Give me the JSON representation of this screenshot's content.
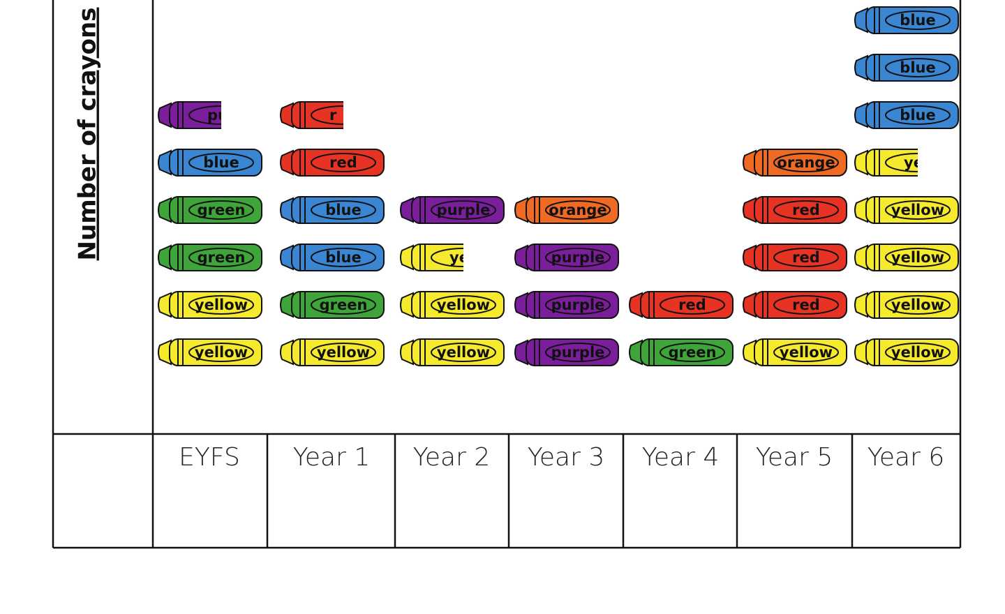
{
  "chart_data": {
    "type": "pictogram",
    "y_label": "Number of crayons",
    "categories": [
      "EYFS",
      "Year 1",
      "Year 2",
      "Year 3",
      "Year 4",
      "Year 5",
      "Year 6"
    ],
    "columns": [
      [
        {
          "text": "yellow",
          "color": "#f5ea2e"
        },
        {
          "text": "yellow",
          "color": "#f5ea2e"
        },
        {
          "text": "green",
          "color": "#3fa53a"
        },
        {
          "text": "green",
          "color": "#3fa53a"
        },
        {
          "text": "blue",
          "color": "#3a86d2"
        },
        {
          "text": "pu",
          "color": "#7a1e9c",
          "half": true
        }
      ],
      [
        {
          "text": "yellow",
          "color": "#f5ea2e"
        },
        {
          "text": "green",
          "color": "#3fa53a"
        },
        {
          "text": "blue",
          "color": "#3a86d2"
        },
        {
          "text": "blue",
          "color": "#3a86d2"
        },
        {
          "text": "red",
          "color": "#e63323"
        },
        {
          "text": "r",
          "color": "#e63323",
          "half": true
        }
      ],
      [
        {
          "text": "yellow",
          "color": "#f5ea2e"
        },
        {
          "text": "yellow",
          "color": "#f5ea2e"
        },
        {
          "text": "yell",
          "color": "#f5ea2e",
          "half": true
        },
        {
          "text": "purple",
          "color": "#7a1e9c"
        }
      ],
      [
        {
          "text": "purple",
          "color": "#7a1e9c"
        },
        {
          "text": "purple",
          "color": "#7a1e9c"
        },
        {
          "text": "purple",
          "color": "#7a1e9c"
        },
        {
          "text": "orange",
          "color": "#ef6a23"
        }
      ],
      [
        {
          "text": "green",
          "color": "#3fa53a"
        },
        {
          "text": "red",
          "color": "#e63323"
        }
      ],
      [
        {
          "text": "yellow",
          "color": "#f5ea2e"
        },
        {
          "text": "red",
          "color": "#e63323"
        },
        {
          "text": "red",
          "color": "#e63323"
        },
        {
          "text": "red",
          "color": "#e63323"
        },
        {
          "text": "orange",
          "color": "#ef6a23"
        }
      ],
      [
        {
          "text": "yellow",
          "color": "#f5ea2e"
        },
        {
          "text": "yellow",
          "color": "#f5ea2e"
        },
        {
          "text": "yellow",
          "color": "#f5ea2e"
        },
        {
          "text": "yellow",
          "color": "#f5ea2e"
        },
        {
          "text": "yell",
          "color": "#f5ea2e",
          "half": true
        },
        {
          "text": "blue",
          "color": "#3a86d2"
        },
        {
          "text": "blue",
          "color": "#3a86d2"
        },
        {
          "text": "blue",
          "color": "#3a86d2"
        }
      ]
    ]
  }
}
